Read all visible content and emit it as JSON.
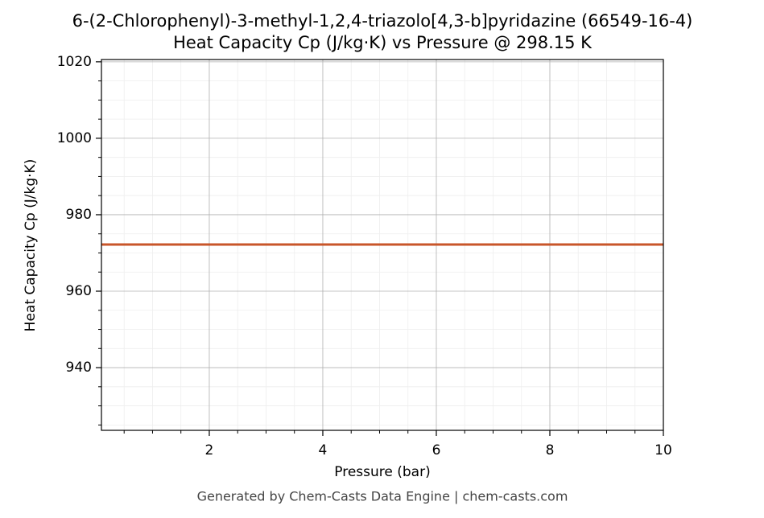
{
  "chart_data": {
    "type": "line",
    "title": "6-(2-Chlorophenyl)-3-methyl-1,2,4-triazolo[4,3-b]pyridazine (66549-16-4)",
    "subtitle": "Heat Capacity Cp (J/kg·K) vs Pressure @ 298.15 K",
    "x_label": "Pressure (bar)",
    "y_label": "Heat Capacity Cp (J/kg·K)",
    "footer": "Generated by Chem-Casts Data Engine | chem-casts.com",
    "x": [
      0.1,
      10
    ],
    "series": [
      {
        "name": "Cp",
        "color": "#c8562a",
        "values": [
          972.2,
          972.2
        ]
      }
    ],
    "xlim": [
      0.1,
      10
    ],
    "ylim": [
      923.6,
      1020.6
    ],
    "xticks": [
      2,
      4,
      6,
      8,
      10
    ],
    "yticks": [
      940,
      960,
      980,
      1000,
      1020
    ],
    "xminor": [
      0.5,
      1,
      1.5,
      2.5,
      3,
      3.5,
      4.5,
      5,
      5.5,
      6.5,
      7,
      7.5,
      8.5,
      9,
      9.5
    ],
    "yminor": [
      925,
      930,
      935,
      945,
      950,
      955,
      965,
      970,
      975,
      985,
      990,
      995,
      1005,
      1010,
      1015
    ],
    "grid": true
  }
}
